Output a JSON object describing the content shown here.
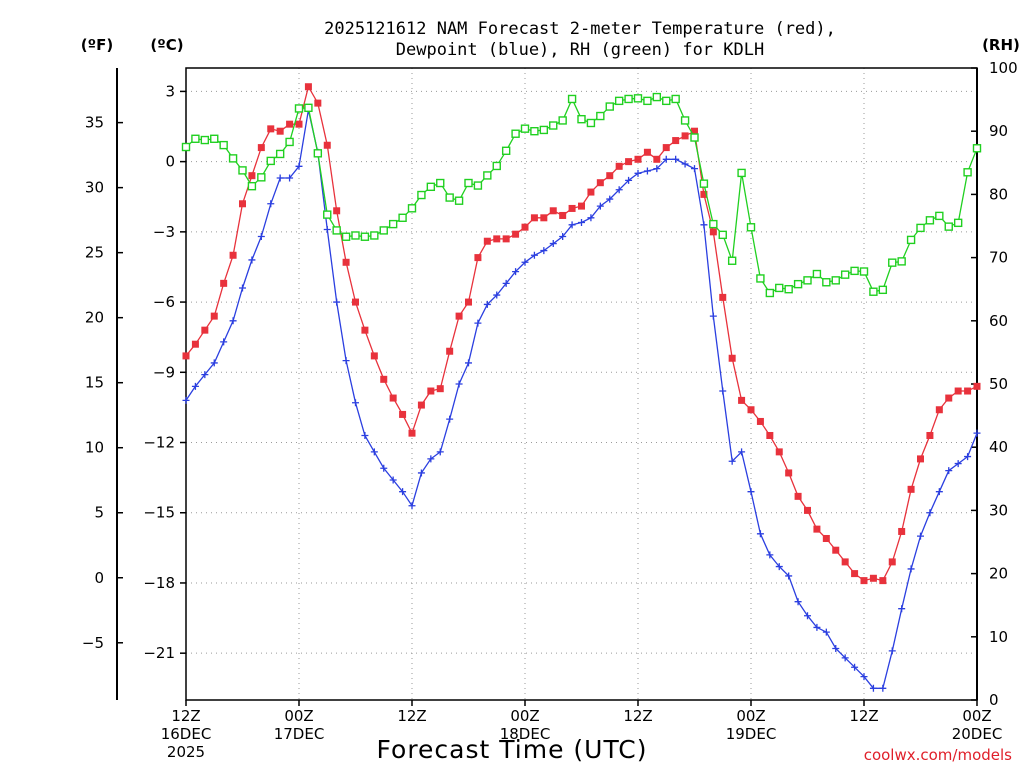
{
  "chart_data": {
    "type": "line",
    "title_line1": "2025121612 NAM Forecast 2-meter Temperature (red),",
    "title_line2": "Dewpoint (blue), RH (green) for KDLH",
    "unit_f": "(ºF)",
    "unit_c": "(ºC)",
    "unit_rh": "(RH)",
    "xlabel": "Forecast Time (UTC)",
    "credit": "coolwx.com/models",
    "x_range_hours": [
      0,
      84
    ],
    "y_range_c": [
      -23.0,
      4.0
    ],
    "rh_range": [
      0,
      100
    ],
    "yticks_c": [
      3,
      0,
      -3,
      -6,
      -9,
      -12,
      -15,
      -18,
      -21
    ],
    "yticks_f": [
      35,
      30,
      25,
      20,
      15,
      10,
      5,
      0,
      -5
    ],
    "yticks_rh": [
      100,
      90,
      80,
      70,
      60,
      50,
      40,
      30,
      20,
      10,
      0
    ],
    "x_ticks": [
      {
        "hour": 0,
        "lines": [
          "12Z",
          "16DEC",
          "2025"
        ]
      },
      {
        "hour": 12,
        "lines": [
          "00Z",
          "17DEC"
        ]
      },
      {
        "hour": 24,
        "lines": [
          "12Z"
        ]
      },
      {
        "hour": 36,
        "lines": [
          "00Z",
          "18DEC"
        ]
      },
      {
        "hour": 48,
        "lines": [
          "12Z"
        ]
      },
      {
        "hour": 60,
        "lines": [
          "00Z",
          "19DEC"
        ]
      },
      {
        "hour": 72,
        "lines": [
          "12Z"
        ]
      },
      {
        "hour": 84,
        "lines": [
          "00Z",
          "20DEC"
        ]
      }
    ],
    "series": [
      {
        "name": "2-meter Temperature",
        "color": "#e8323c",
        "marker": "filled-square",
        "points": [
          [
            0,
            -8.3
          ],
          [
            1,
            -7.8
          ],
          [
            2,
            -7.2
          ],
          [
            3,
            -6.6
          ],
          [
            4,
            -5.2
          ],
          [
            5,
            -4.0
          ],
          [
            6,
            -1.8
          ],
          [
            7,
            -0.6
          ],
          [
            8,
            0.6
          ],
          [
            9,
            1.4
          ],
          [
            10,
            1.3
          ],
          [
            11,
            1.6
          ],
          [
            12,
            1.6
          ],
          [
            13,
            3.2
          ],
          [
            14,
            2.5
          ],
          [
            15,
            0.7
          ],
          [
            16,
            -2.1
          ],
          [
            17,
            -4.3
          ],
          [
            18,
            -6.0
          ],
          [
            19,
            -7.2
          ],
          [
            20,
            -8.3
          ],
          [
            21,
            -9.3
          ],
          [
            22,
            -10.1
          ],
          [
            23,
            -10.8
          ],
          [
            24,
            -11.6
          ],
          [
            25,
            -10.4
          ],
          [
            26,
            -9.8
          ],
          [
            27,
            -9.7
          ],
          [
            28,
            -8.1
          ],
          [
            29,
            -6.6
          ],
          [
            30,
            -6.0
          ],
          [
            31,
            -4.1
          ],
          [
            32,
            -3.4
          ],
          [
            33,
            -3.3
          ],
          [
            34,
            -3.3
          ],
          [
            35,
            -3.1
          ],
          [
            36,
            -2.8
          ],
          [
            37,
            -2.4
          ],
          [
            38,
            -2.4
          ],
          [
            39,
            -2.1
          ],
          [
            40,
            -2.3
          ],
          [
            41,
            -2.0
          ],
          [
            42,
            -1.9
          ],
          [
            43,
            -1.3
          ],
          [
            44,
            -0.9
          ],
          [
            45,
            -0.6
          ],
          [
            46,
            -0.2
          ],
          [
            47,
            0.0
          ],
          [
            48,
            0.1
          ],
          [
            49,
            0.4
          ],
          [
            50,
            0.1
          ],
          [
            51,
            0.6
          ],
          [
            52,
            0.9
          ],
          [
            53,
            1.1
          ],
          [
            54,
            1.3
          ],
          [
            55,
            -1.4
          ],
          [
            56,
            -3.0
          ],
          [
            57,
            -5.8
          ],
          [
            58,
            -8.4
          ],
          [
            59,
            -10.2
          ],
          [
            60,
            -10.6
          ],
          [
            61,
            -11.1
          ],
          [
            62,
            -11.7
          ],
          [
            63,
            -12.4
          ],
          [
            64,
            -13.3
          ],
          [
            65,
            -14.3
          ],
          [
            66,
            -14.9
          ],
          [
            67,
            -15.7
          ],
          [
            68,
            -16.1
          ],
          [
            69,
            -16.6
          ],
          [
            70,
            -17.1
          ],
          [
            71,
            -17.6
          ],
          [
            72,
            -17.9
          ],
          [
            73,
            -17.8
          ],
          [
            74,
            -17.9
          ],
          [
            75,
            -17.1
          ],
          [
            76,
            -15.8
          ],
          [
            77,
            -14.0
          ],
          [
            78,
            -12.7
          ],
          [
            79,
            -11.7
          ],
          [
            80,
            -10.6
          ],
          [
            81,
            -10.1
          ],
          [
            82,
            -9.8
          ],
          [
            83,
            -9.8
          ],
          [
            84,
            -9.6
          ]
        ]
      },
      {
        "name": "Dewpoint",
        "color": "#2b3fe0",
        "marker": "plus",
        "points": [
          [
            0,
            -10.2
          ],
          [
            1,
            -9.6
          ],
          [
            2,
            -9.1
          ],
          [
            3,
            -8.6
          ],
          [
            4,
            -7.7
          ],
          [
            5,
            -6.8
          ],
          [
            6,
            -5.4
          ],
          [
            7,
            -4.2
          ],
          [
            8,
            -3.2
          ],
          [
            9,
            -1.8
          ],
          [
            10,
            -0.7
          ],
          [
            11,
            -0.7
          ],
          [
            12,
            -0.2
          ],
          [
            13,
            2.2
          ],
          [
            14,
            0.4
          ],
          [
            15,
            -2.9
          ],
          [
            16,
            -6.0
          ],
          [
            17,
            -8.5
          ],
          [
            18,
            -10.3
          ],
          [
            19,
            -11.7
          ],
          [
            20,
            -12.4
          ],
          [
            21,
            -13.1
          ],
          [
            22,
            -13.6
          ],
          [
            23,
            -14.1
          ],
          [
            24,
            -14.7
          ],
          [
            25,
            -13.3
          ],
          [
            26,
            -12.7
          ],
          [
            27,
            -12.4
          ],
          [
            28,
            -11.0
          ],
          [
            29,
            -9.5
          ],
          [
            30,
            -8.6
          ],
          [
            31,
            -6.9
          ],
          [
            32,
            -6.1
          ],
          [
            33,
            -5.7
          ],
          [
            34,
            -5.2
          ],
          [
            35,
            -4.7
          ],
          [
            36,
            -4.3
          ],
          [
            37,
            -4.0
          ],
          [
            38,
            -3.8
          ],
          [
            39,
            -3.5
          ],
          [
            40,
            -3.2
          ],
          [
            41,
            -2.7
          ],
          [
            42,
            -2.6
          ],
          [
            43,
            -2.4
          ],
          [
            44,
            -1.9
          ],
          [
            45,
            -1.6
          ],
          [
            46,
            -1.2
          ],
          [
            47,
            -0.8
          ],
          [
            48,
            -0.5
          ],
          [
            49,
            -0.4
          ],
          [
            50,
            -0.3
          ],
          [
            51,
            0.1
          ],
          [
            52,
            0.1
          ],
          [
            53,
            -0.1
          ],
          [
            54,
            -0.3
          ],
          [
            55,
            -2.7
          ],
          [
            56,
            -6.6
          ],
          [
            57,
            -9.8
          ],
          [
            58,
            -12.8
          ],
          [
            59,
            -12.4
          ],
          [
            60,
            -14.1
          ],
          [
            61,
            -15.9
          ],
          [
            62,
            -16.8
          ],
          [
            63,
            -17.3
          ],
          [
            64,
            -17.7
          ],
          [
            65,
            -18.8
          ],
          [
            66,
            -19.4
          ],
          [
            67,
            -19.9
          ],
          [
            68,
            -20.1
          ],
          [
            69,
            -20.8
          ],
          [
            70,
            -21.2
          ],
          [
            71,
            -21.6
          ],
          [
            72,
            -22.0
          ],
          [
            73,
            -22.5
          ],
          [
            74,
            -22.5
          ],
          [
            75,
            -20.9
          ],
          [
            76,
            -19.1
          ],
          [
            77,
            -17.4
          ],
          [
            78,
            -16.0
          ],
          [
            79,
            -15.0
          ],
          [
            80,
            -14.1
          ],
          [
            81,
            -13.2
          ],
          [
            82,
            -12.9
          ],
          [
            83,
            -12.6
          ],
          [
            84,
            -11.6
          ]
        ]
      },
      {
        "name": "Relative Humidity",
        "color": "#20d020",
        "marker": "open-square",
        "axis": "rh",
        "points": [
          [
            0,
            87.5
          ],
          [
            1,
            88.8
          ],
          [
            2,
            88.6
          ],
          [
            3,
            88.8
          ],
          [
            4,
            87.8
          ],
          [
            5,
            85.7
          ],
          [
            6,
            83.8
          ],
          [
            7,
            81.3
          ],
          [
            8,
            82.7
          ],
          [
            9,
            85.3
          ],
          [
            10,
            86.4
          ],
          [
            11,
            88.3
          ],
          [
            12,
            93.6
          ],
          [
            13,
            93.7
          ],
          [
            14,
            86.5
          ],
          [
            15,
            76.8
          ],
          [
            16,
            74.3
          ],
          [
            17,
            73.3
          ],
          [
            18,
            73.5
          ],
          [
            19,
            73.3
          ],
          [
            20,
            73.5
          ],
          [
            21,
            74.3
          ],
          [
            22,
            75.3
          ],
          [
            23,
            76.3
          ],
          [
            24,
            77.8
          ],
          [
            25,
            79.9
          ],
          [
            26,
            81.2
          ],
          [
            27,
            81.8
          ],
          [
            28,
            79.5
          ],
          [
            29,
            79.0
          ],
          [
            30,
            81.8
          ],
          [
            31,
            81.4
          ],
          [
            32,
            83.0
          ],
          [
            33,
            84.5
          ],
          [
            34,
            86.9
          ],
          [
            35,
            89.6
          ],
          [
            36,
            90.4
          ],
          [
            37,
            90.0
          ],
          [
            38,
            90.2
          ],
          [
            39,
            90.9
          ],
          [
            40,
            91.7
          ],
          [
            41,
            95.1
          ],
          [
            42,
            91.9
          ],
          [
            43,
            91.3
          ],
          [
            44,
            92.4
          ],
          [
            45,
            93.9
          ],
          [
            46,
            94.8
          ],
          [
            47,
            95.1
          ],
          [
            48,
            95.2
          ],
          [
            49,
            94.8
          ],
          [
            50,
            95.4
          ],
          [
            51,
            94.8
          ],
          [
            52,
            95.1
          ],
          [
            53,
            91.7
          ],
          [
            54,
            89.0
          ],
          [
            55,
            81.7
          ],
          [
            56,
            75.3
          ],
          [
            57,
            73.6
          ],
          [
            58,
            69.5
          ],
          [
            59,
            83.4
          ],
          [
            60,
            74.8
          ],
          [
            61,
            66.7
          ],
          [
            62,
            64.4
          ],
          [
            63,
            65.2
          ],
          [
            64,
            65.0
          ],
          [
            65,
            65.8
          ],
          [
            66,
            66.4
          ],
          [
            67,
            67.4
          ],
          [
            68,
            66.1
          ],
          [
            69,
            66.4
          ],
          [
            70,
            67.3
          ],
          [
            71,
            67.9
          ],
          [
            72,
            67.8
          ],
          [
            73,
            64.6
          ],
          [
            74,
            64.9
          ],
          [
            75,
            69.2
          ],
          [
            76,
            69.4
          ],
          [
            77,
            72.8
          ],
          [
            78,
            74.7
          ],
          [
            79,
            75.9
          ],
          [
            80,
            76.6
          ],
          [
            81,
            74.9
          ],
          [
            82,
            75.5
          ],
          [
            83,
            83.5
          ],
          [
            84,
            87.3
          ]
        ]
      }
    ]
  }
}
